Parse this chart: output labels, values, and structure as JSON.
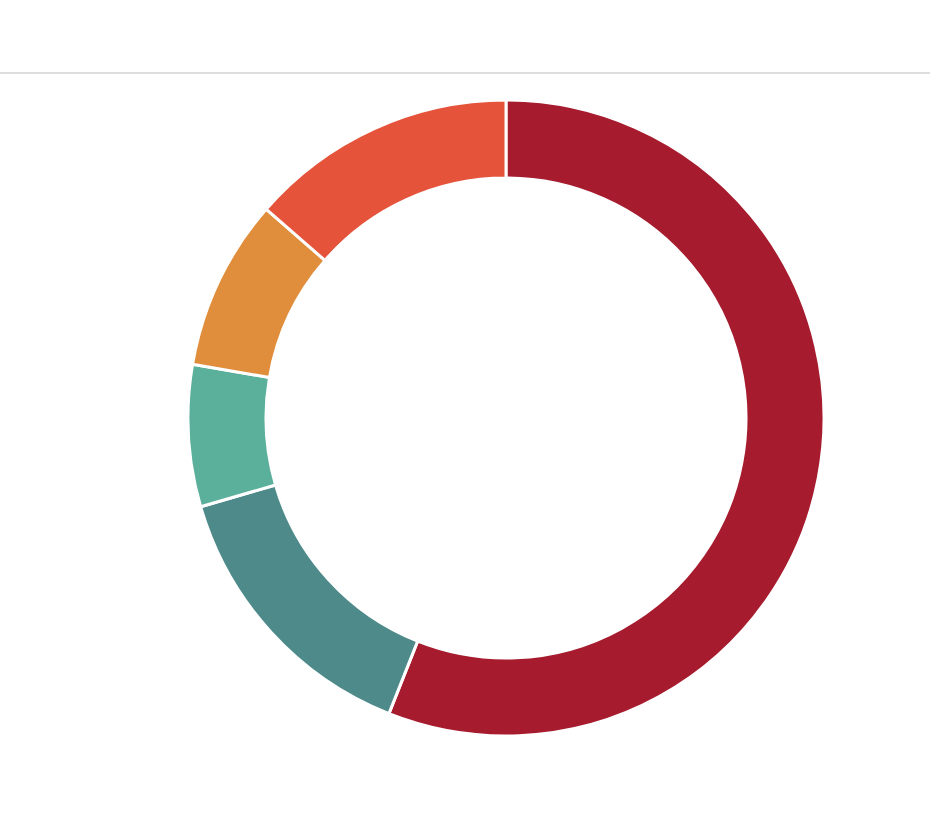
{
  "chart_data": {
    "type": "donut",
    "categories": [
      null,
      null,
      null,
      null,
      null
    ],
    "values": [
      56,
      14.5,
      7.2,
      8.7,
      13.6
    ],
    "colors": [
      "#a61c2e",
      "#4e8a8a",
      "#5bb09c",
      "#e08e3c",
      "#e5533b"
    ]
  }
}
